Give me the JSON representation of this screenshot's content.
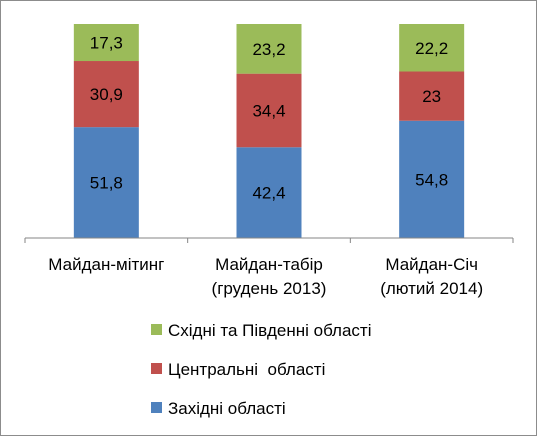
{
  "chart_data": {
    "type": "bar",
    "stacked": true,
    "categories": [
      [
        "Майдан-мітинг"
      ],
      [
        "Майдан-табір",
        "(грудень 2013)"
      ],
      [
        "Майдан-Січ",
        "(лютий 2014)"
      ]
    ],
    "series": [
      {
        "name": "Західні області",
        "color": "#4f81bd",
        "values": [
          51.8,
          42.4,
          54.8
        ],
        "labels": [
          "51,8",
          "42,4",
          "54,8"
        ]
      },
      {
        "name": "Центральні  області",
        "color": "#c0504d",
        "values": [
          30.9,
          34.4,
          23
        ],
        "labels": [
          "30,9",
          "34,4",
          "23"
        ]
      },
      {
        "name": "Східні та Південні області",
        "color": "#9bbb59",
        "values": [
          17.3,
          23.2,
          22.2
        ],
        "labels": [
          "17,3",
          "23,2",
          "22,2"
        ]
      }
    ],
    "legend_order": [
      2,
      1,
      0
    ],
    "legend_position": "bottom",
    "ylim": [
      0,
      100
    ],
    "grid": false
  }
}
